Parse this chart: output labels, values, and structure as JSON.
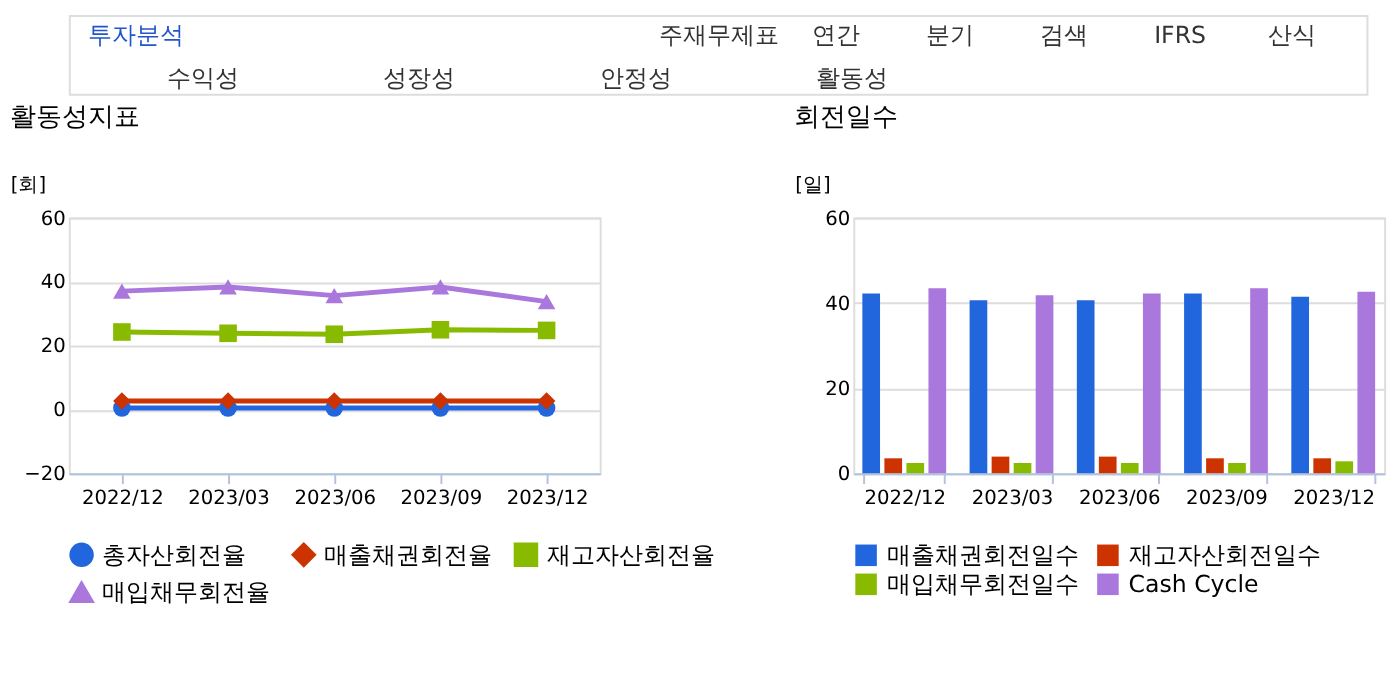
{
  "chart_data": [
    {
      "type": "line",
      "title": "활동성지표",
      "ylabel": "[회]",
      "categories": [
        "2022/12",
        "2023/03",
        "2023/06",
        "2023/09",
        "2023/12"
      ],
      "ylim": [
        -20,
        60
      ],
      "yticks": [
        -20,
        0,
        20,
        40,
        60
      ],
      "grid": "y",
      "legend": "bottom",
      "annotations": [
        "투자분석",
        "주재무제표",
        "연간",
        "분기",
        "검색",
        "IFRS",
        "산식",
        "수익성",
        "성장성",
        "안정성",
        "활동성"
      ],
      "series": [
        {
          "name": "총자산회전율",
          "color": "#2266dd",
          "marker": "circle",
          "values": [
            0.4,
            0.4,
            0.4,
            0.4,
            0.4
          ]
        },
        {
          "name": "매출채권회전율",
          "color": "#cc3300",
          "marker": "diamond",
          "values": [
            2.6,
            2.6,
            2.6,
            2.6,
            2.6
          ]
        },
        {
          "name": "재고자산회전율",
          "color": "#88bb00",
          "marker": "square",
          "values": [
            24.2,
            23.8,
            23.5,
            24.9,
            24.7
          ]
        },
        {
          "name": "매입채무회전율",
          "color": "#aa77dd",
          "marker": "triangle",
          "values": [
            37.0,
            38.3,
            35.6,
            38.3,
            33.7
          ]
        }
      ]
    },
    {
      "type": "bar",
      "title": "회전일수",
      "ylabel": "[일]",
      "categories": [
        "2022/12",
        "2023/03",
        "2023/06",
        "2023/09",
        "2023/12"
      ],
      "ylim": [
        0,
        60
      ],
      "yticks": [
        0,
        20,
        40,
        60
      ],
      "grid": "y",
      "legend": "bottom",
      "series": [
        {
          "name": "매출채권회전일수",
          "color": "#2266dd",
          "values": [
            42.2,
            40.6,
            40.6,
            42.2,
            41.4
          ]
        },
        {
          "name": "재고자산회전일수",
          "color": "#cc3300",
          "values": [
            3.5,
            3.9,
            3.9,
            3.5,
            3.5
          ]
        },
        {
          "name": "매입채무회전일수",
          "color": "#88bb00",
          "values": [
            2.4,
            2.4,
            2.4,
            2.4,
            2.8
          ]
        },
        {
          "name": "Cash Cycle",
          "color": "#aa77dd",
          "values": [
            43.4,
            41.8,
            42.2,
            43.4,
            42.6
          ]
        }
      ]
    }
  ]
}
